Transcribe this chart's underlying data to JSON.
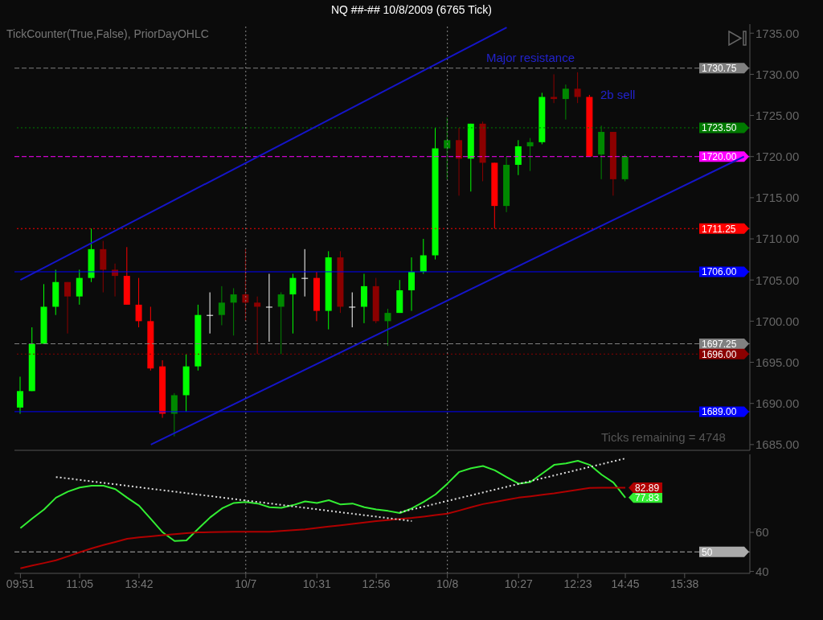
{
  "chart_data": [
    {
      "type": "candlestick",
      "title": "NQ ##-##  10/8/2009 (6765 Tick)",
      "annotations": [
        "TickCounter(True,False), PriorDayOHLC",
        {
          "text": "Major resistance",
          "y": 1730.75
        },
        "2b sell",
        "Ticks remaining = 4748"
      ],
      "categories": [
        "09:51",
        null,
        null,
        null,
        null,
        "11:05",
        null,
        null,
        null,
        null,
        "13:42",
        null,
        null,
        null,
        null,
        null,
        null,
        null,
        null,
        "10/7",
        null,
        null,
        null,
        null,
        null,
        "10:31",
        null,
        null,
        null,
        null,
        "12:56",
        null,
        null,
        null,
        null,
        null,
        "10/8",
        null,
        null,
        null,
        null,
        null,
        "10:27",
        null,
        null,
        null,
        null,
        "12:23",
        null,
        null,
        null,
        "14:45",
        null,
        null,
        null,
        null,
        "15:38",
        null,
        null,
        null,
        null,
        null
      ],
      "ohlc": [
        [
          1689.5,
          1693.25,
          1688.75,
          1691.5
        ],
        [
          1691.5,
          1699.25,
          1691.5,
          1697.25
        ],
        [
          1697.25,
          1704.5,
          1697.25,
          1701.75
        ],
        [
          1701.75,
          1706.25,
          1700.75,
          1704.75
        ],
        [
          1704.75,
          1704.75,
          1698.5,
          1703
        ],
        [
          1703,
          1706.25,
          1702,
          1705.25
        ],
        [
          1705.25,
          1711.25,
          1704.75,
          1708.75
        ],
        [
          1708.75,
          1709.75,
          1703.5,
          1706.25
        ],
        [
          1706.25,
          1707,
          1703,
          1705.5
        ],
        [
          1705.5,
          1709,
          1702,
          1702
        ],
        [
          1702,
          1705.25,
          1699.25,
          1700
        ],
        [
          1700,
          1701.75,
          1694,
          1694.25
        ],
        [
          1694.5,
          1695.25,
          1688.25,
          1688.75
        ],
        [
          1688.75,
          1691.25,
          1686,
          1691
        ],
        [
          1691,
          1696,
          1689,
          1694.5
        ],
        [
          1694.5,
          1702,
          1694,
          1700.75
        ],
        [
          1700.75,
          1703.5,
          1698.5,
          1700.75
        ],
        [
          1700.75,
          1704.25,
          1699.5,
          1702.25
        ],
        [
          1702.25,
          1704,
          1698.25,
          1703.25
        ],
        [
          1703.25,
          1708.75,
          1700,
          1702.25
        ],
        [
          1702.25,
          1703,
          1696,
          1701.75
        ],
        [
          1701.75,
          1705.75,
          1697.5,
          1701.75
        ],
        [
          1701.75,
          1703.5,
          1696,
          1703.25
        ],
        [
          1703.25,
          1705.75,
          1698.5,
          1705.25
        ],
        [
          1705.25,
          1708.75,
          1703,
          1705.25
        ],
        [
          1705.25,
          1706,
          1700,
          1701.25
        ],
        [
          1701.25,
          1708.5,
          1699,
          1707.75
        ],
        [
          1707.75,
          1708.5,
          1701,
          1701.75
        ],
        [
          1701.75,
          1703.5,
          1699.25,
          1701.75
        ],
        [
          1701.75,
          1705.75,
          1699.75,
          1704.25
        ],
        [
          1704.25,
          1705.25,
          1699.75,
          1700
        ],
        [
          1700,
          1701.5,
          1697,
          1701
        ],
        [
          1701,
          1705,
          1701,
          1703.75
        ],
        [
          1703.75,
          1707.75,
          1701.25,
          1706
        ],
        [
          1706,
          1710,
          1705.75,
          1708
        ],
        [
          1708,
          1723.5,
          1707.5,
          1721
        ],
        [
          1721,
          1724.75,
          1717.25,
          1722
        ],
        [
          1722,
          1723.5,
          1715.25,
          1719.75
        ],
        [
          1719.75,
          1724,
          1715.75,
          1724
        ],
        [
          1724,
          1724.25,
          1717,
          1719.25
        ],
        [
          1719.25,
          1719.25,
          1711.25,
          1714
        ],
        [
          1714,
          1720,
          1713.25,
          1719
        ],
        [
          1719,
          1722,
          1717.75,
          1721.25
        ],
        [
          1721.25,
          1722.25,
          1718.25,
          1721.75
        ],
        [
          1721.75,
          1727.75,
          1721.5,
          1727.25
        ],
        [
          1727.25,
          1730,
          1726.5,
          1727
        ],
        [
          1727,
          1728.75,
          1724.5,
          1728.25
        ],
        [
          1728.25,
          1730.25,
          1726.5,
          1727.25
        ],
        [
          1727.25,
          1727.5,
          1720,
          1720
        ],
        [
          1720.25,
          1723.75,
          1717.25,
          1723
        ],
        [
          1723,
          1723,
          1715.25,
          1717.25
        ],
        [
          1717.25,
          1720.25,
          1717,
          1720
        ],
        null,
        null,
        null,
        null,
        null,
        null,
        null,
        null,
        null,
        null
      ],
      "colors": [
        "#00ff00",
        "#00ff00",
        "#00ff00",
        "#00ff00",
        "#8b0000",
        "#00ff00",
        "#00ff00",
        "#8b0000",
        "#8b0000",
        "#ff0000",
        "#ff0000",
        "#ff0000",
        "#ff0000",
        "#008800",
        "#00ff00",
        "#00ff00",
        "#ffffff",
        "#008800",
        "#008800",
        "#8b0000",
        "#8b0000",
        "#ffffff",
        "#008800",
        "#00ff00",
        "#ffffff",
        "#ff0000",
        "#00ff00",
        "#8b0000",
        "#ffffff",
        "#00ff00",
        "#8b0000",
        "#008800",
        "#00ff00",
        "#00ff00",
        "#00ff00",
        "#00ff00",
        "#008800",
        "#8b0000",
        "#00ff00",
        "#8b0000",
        "#ff0000",
        "#008800",
        "#00ff00",
        "#008800",
        "#00ff00",
        "#8b0000",
        "#008800",
        "#8b0000",
        "#ff0000",
        "#008800",
        "#8b0000",
        "#008800",
        null,
        null,
        null,
        null,
        null,
        null,
        null,
        null,
        null,
        null
      ],
      "series": [
        {
          "type": "line",
          "color": "#1515c8",
          "values": [
            1705,
            null,
            null,
            null,
            null,
            null,
            null,
            null,
            null,
            null,
            null,
            null,
            null,
            null,
            null,
            null,
            null,
            null,
            null,
            null,
            null,
            null,
            null,
            null,
            null,
            null,
            null,
            null,
            null,
            null,
            null,
            null,
            null,
            null,
            null,
            null,
            null,
            null,
            null,
            null,
            null,
            1735.7,
            null,
            null,
            null,
            null,
            null,
            null,
            null,
            null,
            null,
            null,
            null,
            null,
            null,
            null,
            null,
            null,
            null,
            null,
            null,
            null
          ]
        },
        {
          "type": "line",
          "color": "#1515c8",
          "values": [
            null,
            null,
            null,
            null,
            null,
            null,
            null,
            null,
            null,
            null,
            null,
            1685,
            null,
            null,
            null,
            null,
            null,
            null,
            null,
            null,
            null,
            null,
            null,
            null,
            null,
            null,
            null,
            null,
            null,
            null,
            null,
            null,
            null,
            null,
            null,
            null,
            null,
            null,
            null,
            null,
            null,
            null,
            null,
            null,
            null,
            null,
            null,
            null,
            null,
            null,
            null,
            null,
            null,
            null,
            null,
            null,
            null,
            null,
            null,
            null,
            null,
            1720
          ]
        }
      ],
      "ylim": [
        1684.3,
        1736.1
      ],
      "yticks": [
        {
          "value": 1685,
          "label": "1685.00"
        },
        {
          "value": 1690,
          "label": "1690.00"
        },
        {
          "value": 1695,
          "label": "1695.00"
        },
        {
          "value": 1700,
          "label": "1700.00"
        },
        {
          "value": 1705,
          "label": "1705.00"
        },
        {
          "value": 1710,
          "label": "1710.00"
        },
        {
          "value": 1715,
          "label": "1715.00"
        },
        {
          "value": 1720,
          "label": "1720.00"
        },
        {
          "value": 1725,
          "label": "1725.00"
        },
        {
          "value": 1730,
          "label": "1730.00"
        },
        {
          "value": 1735,
          "label": "1735.00"
        }
      ],
      "tick_labels": "y",
      "ref_lines": [
        {
          "axis": "y",
          "value": 1730.75,
          "label": "1730.75",
          "color": "#808080",
          "line_style": "dashed"
        },
        {
          "axis": "y",
          "value": 1723.5,
          "label": "1723.50",
          "color": "#007a00",
          "line_style": "dotted"
        },
        {
          "axis": "y",
          "value": 1720,
          "label": "1720.00",
          "color": "#ff00ff",
          "line_style": "dashed"
        },
        {
          "axis": "y",
          "value": 1711.25,
          "label": "1711.25",
          "color": "#ff0000",
          "line_style": "dotted"
        },
        {
          "axis": "y",
          "value": 1706,
          "label": "1706.00",
          "color": "#0000ff",
          "line_style": "solid"
        },
        {
          "axis": "y",
          "value": 1697.25,
          "label": "1697.25",
          "color": "#808080",
          "line_style": "dashed"
        },
        {
          "axis": "y",
          "value": 1696,
          "label": "1696.00",
          "color": "#8b0000",
          "line_style": "dotted"
        },
        {
          "axis": "y",
          "value": 1689,
          "label": "1689.00",
          "color": "#0000ff",
          "line_style": "solid"
        },
        {
          "axis": "x",
          "value": "10/7",
          "label": null,
          "color": "#888888",
          "line_style": "dotted"
        },
        {
          "axis": "x",
          "value": "10/8",
          "label": null,
          "color": "#888888",
          "line_style": "dotted"
        }
      ]
    },
    {
      "type": "line",
      "categories": [
        "09:51",
        null,
        null,
        null,
        null,
        "11:05",
        null,
        null,
        null,
        null,
        "13:42",
        null,
        null,
        null,
        null,
        null,
        null,
        null,
        null,
        "10/7",
        null,
        null,
        null,
        null,
        null,
        "10:31",
        null,
        null,
        null,
        null,
        "12:56",
        null,
        null,
        null,
        null,
        null,
        "10/8",
        null,
        null,
        null,
        null,
        null,
        "10:27",
        null,
        null,
        null,
        null,
        "12:23",
        null,
        null,
        null,
        "14:45",
        null,
        null,
        null,
        null,
        "15:38",
        null,
        null,
        null,
        null,
        null
      ],
      "series": [
        {
          "color": "#33ee33",
          "values": [
            62.2,
            67.1,
            71.8,
            77.8,
            80.9,
            83,
            83.9,
            83.9,
            82.2,
            77.8,
            73.7,
            66.9,
            60,
            55.6,
            55.9,
            61.9,
            67.7,
            72.3,
            75.1,
            75.6,
            74.8,
            72.9,
            72.6,
            74,
            75.9,
            75.1,
            76.5,
            74.3,
            74.8,
            72.9,
            71.8,
            71,
            69.9,
            72.3,
            75.6,
            79.5,
            85,
            91,
            92.9,
            94,
            91.8,
            88.3,
            85,
            85.8,
            90.2,
            94.6,
            95.4,
            96.7,
            94.6,
            89.6,
            85.5,
            77.83,
            null,
            null,
            null,
            null,
            null,
            null,
            null,
            null,
            null,
            null
          ],
          "value_labels": [
            null,
            null,
            null,
            null,
            null,
            null,
            null,
            null,
            null,
            null,
            null,
            null,
            null,
            null,
            null,
            null,
            null,
            null,
            null,
            null,
            null,
            null,
            null,
            null,
            null,
            null,
            null,
            null,
            null,
            null,
            null,
            null,
            null,
            null,
            null,
            null,
            null,
            null,
            null,
            null,
            null,
            null,
            null,
            null,
            null,
            null,
            null,
            null,
            null,
            null,
            null,
            "77.83",
            null,
            null,
            null,
            null,
            null,
            null,
            null,
            null,
            null,
            null
          ]
        },
        {
          "color": "#b00000",
          "values": [
            41.6,
            43,
            44.3,
            45.7,
            47.7,
            49.8,
            51.8,
            53.5,
            55.1,
            56.7,
            57.4,
            58,
            58.6,
            59.1,
            59.6,
            60,
            60.1,
            60.2,
            60.3,
            60.3,
            60.3,
            60.3,
            60.7,
            61.2,
            61.6,
            62.3,
            63,
            63.6,
            64.3,
            65.1,
            65.8,
            66.3,
            66.9,
            67.4,
            68.1,
            68.9,
            69.6,
            71.2,
            72.9,
            74.5,
            75.6,
            76.7,
            77.8,
            78.5,
            79.3,
            80,
            80.9,
            81.9,
            82.8,
            82.9,
            82.9,
            82.89,
            null,
            null,
            null,
            null,
            null,
            null,
            null,
            null,
            null,
            null
          ],
          "value_labels": [
            null,
            null,
            null,
            null,
            null,
            null,
            null,
            null,
            null,
            null,
            null,
            null,
            null,
            null,
            null,
            null,
            null,
            null,
            null,
            null,
            null,
            null,
            null,
            null,
            null,
            null,
            null,
            null,
            null,
            null,
            null,
            null,
            null,
            null,
            null,
            null,
            null,
            null,
            null,
            null,
            null,
            null,
            null,
            null,
            null,
            null,
            null,
            null,
            null,
            null,
            null,
            "82.89",
            null,
            null,
            null,
            null,
            null,
            null,
            null,
            null,
            null,
            null
          ]
        },
        {
          "color": "#dddddd",
          "line_style": "dotted",
          "values": [
            null,
            null,
            null,
            88.4,
            null,
            null,
            null,
            null,
            null,
            null,
            null,
            null,
            null,
            null,
            null,
            null,
            null,
            null,
            null,
            null,
            null,
            null,
            null,
            null,
            null,
            null,
            null,
            null,
            null,
            null,
            null,
            null,
            null,
            65.8,
            null,
            null,
            null,
            null,
            null,
            null,
            null,
            null,
            null,
            null,
            null,
            null,
            null,
            null,
            null,
            null,
            null,
            null,
            null,
            null,
            null,
            null,
            null,
            null,
            null,
            null,
            null,
            null
          ]
        },
        {
          "color": "#dddddd",
          "line_style": "dotted",
          "values": [
            null,
            null,
            null,
            null,
            null,
            null,
            null,
            null,
            null,
            null,
            null,
            null,
            null,
            null,
            null,
            null,
            null,
            null,
            null,
            null,
            null,
            null,
            null,
            null,
            null,
            null,
            null,
            null,
            null,
            null,
            null,
            null,
            70.3,
            null,
            null,
            null,
            null,
            null,
            null,
            null,
            null,
            null,
            null,
            null,
            null,
            null,
            null,
            null,
            null,
            null,
            null,
            97.9,
            null,
            null,
            null,
            null,
            null,
            null,
            null,
            null,
            null,
            null
          ]
        }
      ],
      "ylim": [
        39,
        100
      ],
      "yticks": [
        40,
        60
      ],
      "ref_lines": [
        {
          "axis": "y",
          "value": 50,
          "label": "50",
          "color": "#aaaaaa",
          "line_style": "dashed"
        },
        {
          "axis": "x",
          "value": "10/7",
          "label": null,
          "color": "#888888",
          "line_style": "dotted"
        },
        {
          "axis": "x",
          "value": "10/8",
          "label": null,
          "color": "#888888",
          "line_style": "dotted"
        }
      ]
    }
  ]
}
